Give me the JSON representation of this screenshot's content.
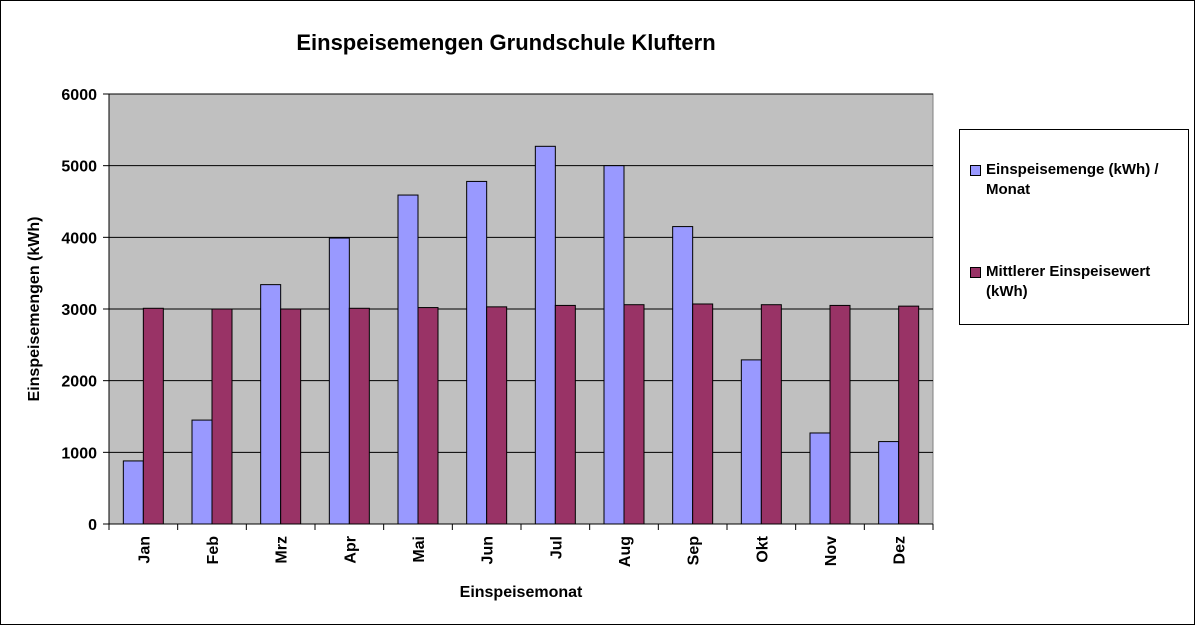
{
  "colors": {
    "plot_background": "#C0C0C0",
    "gridline": "#000000",
    "series_1": "#9999FF",
    "series_2": "#993366"
  },
  "chart_data": {
    "type": "bar",
    "title": "Einspeisemengen Grundschule Kluftern",
    "xlabel": "Einspeisemonat",
    "ylabel": "Einspeisemengen (kWh)",
    "ylim": [
      0,
      6000
    ],
    "yticks": [
      0,
      1000,
      2000,
      3000,
      4000,
      5000,
      6000
    ],
    "grid": true,
    "legend_position": "right",
    "categories": [
      "Jan",
      "Feb",
      "Mrz",
      "Apr",
      "Mai",
      "Jun",
      "Jul",
      "Aug",
      "Sep",
      "Okt",
      "Nov",
      "Dez"
    ],
    "series": [
      {
        "name": "Einspeisemenge (kWh) / Monat",
        "color": "#9999FF",
        "values": [
          880,
          1450,
          3340,
          3990,
          4590,
          4780,
          5270,
          5000,
          4150,
          2290,
          1270,
          1150
        ]
      },
      {
        "name": "Mittlerer Einspeisewert (kWh)",
        "color": "#993366",
        "values": [
          3010,
          3000,
          3000,
          3010,
          3020,
          3030,
          3050,
          3060,
          3070,
          3060,
          3050,
          3040
        ]
      }
    ]
  }
}
